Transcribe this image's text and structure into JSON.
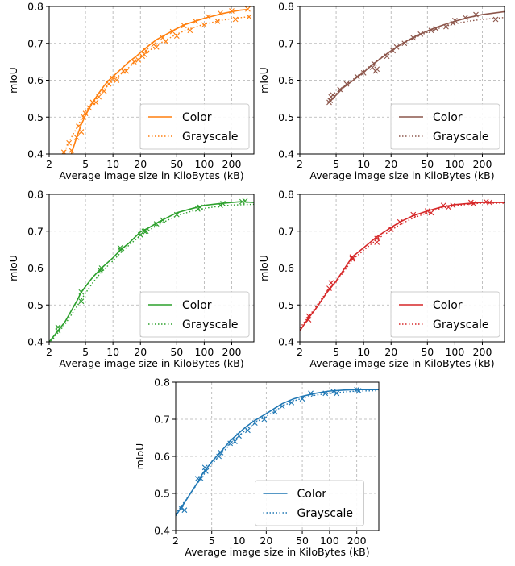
{
  "chart_data": [
    {
      "type": "line",
      "color": "#ff7f0e",
      "xlabel": "Average image size in KiloBytes (kB)",
      "ylabel": "mIoU",
      "xscale": "log",
      "xlim": [
        2,
        350
      ],
      "ylim": [
        0.4,
        0.8
      ],
      "xticks": [
        2,
        5,
        10,
        20,
        50,
        100,
        200
      ],
      "yticks": [
        "0.4",
        "0.5",
        "0.6",
        "0.7",
        "0.8"
      ],
      "grid": true,
      "legend_position": "bottom-right",
      "series": [
        {
          "name": "Color",
          "style": "solid",
          "x": [
            3.5,
            4,
            4.5,
            5,
            6,
            7,
            8,
            9,
            10,
            12,
            15,
            18,
            20,
            25,
            30,
            40,
            50,
            60,
            80,
            100,
            130,
            160,
            200,
            250,
            300
          ],
          "y": [
            0.4,
            0.445,
            0.48,
            0.505,
            0.54,
            0.565,
            0.585,
            0.6,
            0.61,
            0.628,
            0.65,
            0.665,
            0.675,
            0.695,
            0.71,
            0.727,
            0.74,
            0.75,
            0.76,
            0.768,
            0.775,
            0.781,
            0.786,
            0.79,
            0.792
          ]
        },
        {
          "name": "Grayscale",
          "style": "dotted",
          "x": [
            2.8,
            3,
            3.5,
            4,
            4.5,
            5,
            6,
            7,
            8,
            10,
            12,
            15,
            20,
            25,
            30,
            40,
            50,
            70,
            100,
            150,
            200,
            300
          ],
          "y": [
            0.4,
            0.41,
            0.445,
            0.47,
            0.495,
            0.515,
            0.54,
            0.56,
            0.575,
            0.598,
            0.615,
            0.635,
            0.662,
            0.68,
            0.695,
            0.712,
            0.725,
            0.74,
            0.752,
            0.762,
            0.767,
            0.772
          ]
        }
      ],
      "markers": [
        {
          "x": 3.5,
          "y": 0.41
        },
        {
          "x": 4,
          "y": 0.445
        },
        {
          "x": 4.5,
          "y": 0.46
        },
        {
          "x": 5,
          "y": 0.51
        },
        {
          "x": 6,
          "y": 0.54
        },
        {
          "x": 7,
          "y": 0.555
        },
        {
          "x": 9,
          "y": 0.59
        },
        {
          "x": 10,
          "y": 0.605
        },
        {
          "x": 13,
          "y": 0.625
        },
        {
          "x": 17,
          "y": 0.65
        },
        {
          "x": 21,
          "y": 0.665
        },
        {
          "x": 23,
          "y": 0.68
        },
        {
          "x": 28,
          "y": 0.697
        },
        {
          "x": 35,
          "y": 0.715
        },
        {
          "x": 45,
          "y": 0.732
        },
        {
          "x": 60,
          "y": 0.748
        },
        {
          "x": 80,
          "y": 0.76
        },
        {
          "x": 110,
          "y": 0.773
        },
        {
          "x": 150,
          "y": 0.782
        },
        {
          "x": 200,
          "y": 0.788
        },
        {
          "x": 300,
          "y": 0.793
        },
        {
          "x": 2.9,
          "y": 0.405
        },
        {
          "x": 3.3,
          "y": 0.43
        },
        {
          "x": 4.2,
          "y": 0.475
        },
        {
          "x": 4.8,
          "y": 0.5
        },
        {
          "x": 5.5,
          "y": 0.525
        },
        {
          "x": 6.5,
          "y": 0.54
        },
        {
          "x": 8,
          "y": 0.57
        },
        {
          "x": 11,
          "y": 0.6
        },
        {
          "x": 14,
          "y": 0.625
        },
        {
          "x": 19,
          "y": 0.655
        },
        {
          "x": 22,
          "y": 0.67
        },
        {
          "x": 30,
          "y": 0.69
        },
        {
          "x": 38,
          "y": 0.705
        },
        {
          "x": 50,
          "y": 0.72
        },
        {
          "x": 70,
          "y": 0.735
        },
        {
          "x": 100,
          "y": 0.75
        },
        {
          "x": 140,
          "y": 0.76
        },
        {
          "x": 220,
          "y": 0.765
        },
        {
          "x": 310,
          "y": 0.772
        }
      ]
    },
    {
      "type": "line",
      "color": "#8c564b",
      "xlabel": "Average image size in KiloBytes (kB)",
      "ylabel": "mIoU",
      "xscale": "log",
      "xlim": [
        2,
        350
      ],
      "ylim": [
        0.4,
        0.8
      ],
      "xticks": [
        2,
        5,
        10,
        20,
        50,
        100,
        200
      ],
      "yticks": [
        "0.4",
        "0.5",
        "0.6",
        "0.7",
        "0.8"
      ],
      "grid": true,
      "legend_position": "bottom-right",
      "series": [
        {
          "name": "Color",
          "style": "solid",
          "x": [
            4.2,
            5,
            6,
            8,
            10,
            13,
            17,
            22,
            30,
            40,
            55,
            75,
            100,
            140,
            200,
            350
          ],
          "y": [
            0.54,
            0.56,
            0.58,
            0.603,
            0.622,
            0.645,
            0.667,
            0.687,
            0.707,
            0.723,
            0.738,
            0.75,
            0.76,
            0.77,
            0.778,
            0.786
          ]
        },
        {
          "name": "Grayscale",
          "style": "dotted",
          "x": [
            4.2,
            5,
            6,
            8,
            10,
            13,
            17,
            22,
            30,
            40,
            55,
            75,
            100,
            140,
            200,
            350
          ],
          "y": [
            0.545,
            0.563,
            0.582,
            0.606,
            0.625,
            0.647,
            0.668,
            0.687,
            0.705,
            0.72,
            0.734,
            0.745,
            0.753,
            0.76,
            0.765,
            0.77
          ]
        }
      ],
      "markers": [
        {
          "x": 4.2,
          "y": 0.54
        },
        {
          "x": 4.3,
          "y": 0.545
        },
        {
          "x": 4.4,
          "y": 0.555
        },
        {
          "x": 4.6,
          "y": 0.56
        },
        {
          "x": 5.5,
          "y": 0.575
        },
        {
          "x": 6.5,
          "y": 0.59
        },
        {
          "x": 8.5,
          "y": 0.61
        },
        {
          "x": 10,
          "y": 0.62
        },
        {
          "x": 12.5,
          "y": 0.635
        },
        {
          "x": 13,
          "y": 0.645
        },
        {
          "x": 13.5,
          "y": 0.625
        },
        {
          "x": 14,
          "y": 0.63
        },
        {
          "x": 18,
          "y": 0.665
        },
        {
          "x": 21,
          "y": 0.68
        },
        {
          "x": 23,
          "y": 0.69
        },
        {
          "x": 28,
          "y": 0.7
        },
        {
          "x": 35,
          "y": 0.715
        },
        {
          "x": 42,
          "y": 0.725
        },
        {
          "x": 55,
          "y": 0.735
        },
        {
          "x": 62,
          "y": 0.74
        },
        {
          "x": 80,
          "y": 0.745
        },
        {
          "x": 95,
          "y": 0.755
        },
        {
          "x": 100,
          "y": 0.762
        },
        {
          "x": 130,
          "y": 0.77
        },
        {
          "x": 170,
          "y": 0.778
        },
        {
          "x": 280,
          "y": 0.765
        }
      ]
    },
    {
      "type": "line",
      "color": "#2ca02c",
      "xlabel": "Average image size in KiloBytes (kB)",
      "ylabel": "mIoU",
      "xscale": "log",
      "xlim": [
        2,
        350
      ],
      "ylim": [
        0.4,
        0.8
      ],
      "xticks": [
        2,
        5,
        10,
        20,
        50,
        100,
        200
      ],
      "yticks": [
        "0.4",
        "0.5",
        "0.6",
        "0.7",
        "0.8"
      ],
      "grid": true,
      "legend_position": "bottom-right",
      "series": [
        {
          "name": "Color",
          "style": "solid",
          "x": [
            2,
            2.5,
            3,
            4,
            4.5,
            5,
            6,
            7.5,
            10,
            12,
            15,
            20,
            25,
            30,
            40,
            50,
            70,
            100,
            150,
            200,
            250,
            350
          ],
          "y": [
            0.4,
            0.43,
            0.455,
            0.51,
            0.535,
            0.55,
            0.575,
            0.6,
            0.628,
            0.648,
            0.668,
            0.698,
            0.71,
            0.722,
            0.738,
            0.75,
            0.76,
            0.77,
            0.775,
            0.778,
            0.78,
            0.778
          ]
        },
        {
          "name": "Grayscale",
          "style": "dotted",
          "x": [
            2,
            2.5,
            3,
            4,
            4.5,
            5,
            6,
            7.5,
            10,
            12,
            15,
            20,
            25,
            30,
            40,
            50,
            70,
            100,
            150,
            200,
            350
          ],
          "y": [
            0.395,
            0.425,
            0.448,
            0.495,
            0.515,
            0.532,
            0.56,
            0.59,
            0.62,
            0.64,
            0.662,
            0.688,
            0.703,
            0.715,
            0.73,
            0.742,
            0.753,
            0.762,
            0.768,
            0.771,
            0.773
          ]
        }
      ],
      "markers": [
        {
          "x": 2.5,
          "y": 0.44
        },
        {
          "x": 2.5,
          "y": 0.43
        },
        {
          "x": 4.5,
          "y": 0.535
        },
        {
          "x": 4.5,
          "y": 0.51
        },
        {
          "x": 7.5,
          "y": 0.6
        },
        {
          "x": 7.3,
          "y": 0.593
        },
        {
          "x": 12,
          "y": 0.655
        },
        {
          "x": 12,
          "y": 0.65
        },
        {
          "x": 20,
          "y": 0.69
        },
        {
          "x": 22,
          "y": 0.7
        },
        {
          "x": 23,
          "y": 0.7
        },
        {
          "x": 30,
          "y": 0.72
        },
        {
          "x": 35,
          "y": 0.73
        },
        {
          "x": 50,
          "y": 0.745
        },
        {
          "x": 85,
          "y": 0.76
        },
        {
          "x": 90,
          "y": 0.765
        },
        {
          "x": 150,
          "y": 0.77
        },
        {
          "x": 160,
          "y": 0.775
        },
        {
          "x": 260,
          "y": 0.78
        },
        {
          "x": 280,
          "y": 0.782
        }
      ]
    },
    {
      "type": "line",
      "color": "#d62728",
      "xlabel": "Average image size in KiloBytes (kB)",
      "ylabel": "mIoU",
      "xscale": "log",
      "xlim": [
        2,
        350
      ],
      "ylim": [
        0.4,
        0.8
      ],
      "xticks": [
        2,
        5,
        10,
        20,
        50,
        100,
        200
      ],
      "yticks": [
        "0.4",
        "0.5",
        "0.6",
        "0.7",
        "0.8"
      ],
      "grid": true,
      "legend_position": "bottom-right",
      "series": [
        {
          "name": "Color",
          "style": "solid",
          "x": [
            2,
            2.5,
            3,
            4,
            5,
            7.5,
            10,
            14,
            20,
            25,
            35,
            50,
            70,
            100,
            150,
            200,
            350
          ],
          "y": [
            0.43,
            0.465,
            0.49,
            0.535,
            0.565,
            0.63,
            0.655,
            0.685,
            0.71,
            0.725,
            0.742,
            0.755,
            0.765,
            0.772,
            0.776,
            0.778,
            0.778
          ]
        },
        {
          "name": "Grayscale",
          "style": "dotted",
          "x": [
            2,
            2.5,
            3,
            4,
            5,
            7.5,
            10,
            14,
            20,
            25,
            35,
            50,
            70,
            100,
            150,
            200,
            350
          ],
          "y": [
            0.438,
            0.468,
            0.495,
            0.538,
            0.562,
            0.622,
            0.648,
            0.678,
            0.702,
            0.718,
            0.736,
            0.75,
            0.762,
            0.769,
            0.774,
            0.776,
            0.776
          ]
        }
      ],
      "markers": [
        {
          "x": 2.5,
          "y": 0.46
        },
        {
          "x": 2.5,
          "y": 0.47
        },
        {
          "x": 4.2,
          "y": 0.545
        },
        {
          "x": 4.4,
          "y": 0.56
        },
        {
          "x": 7.5,
          "y": 0.63
        },
        {
          "x": 7.5,
          "y": 0.625
        },
        {
          "x": 14,
          "y": 0.68
        },
        {
          "x": 14,
          "y": 0.67
        },
        {
          "x": 20,
          "y": 0.705
        },
        {
          "x": 25,
          "y": 0.725
        },
        {
          "x": 35,
          "y": 0.745
        },
        {
          "x": 50,
          "y": 0.755
        },
        {
          "x": 55,
          "y": 0.75
        },
        {
          "x": 75,
          "y": 0.77
        },
        {
          "x": 85,
          "y": 0.765
        },
        {
          "x": 95,
          "y": 0.77
        },
        {
          "x": 150,
          "y": 0.778
        },
        {
          "x": 160,
          "y": 0.775
        },
        {
          "x": 220,
          "y": 0.78
        },
        {
          "x": 240,
          "y": 0.778
        }
      ]
    },
    {
      "type": "line",
      "color": "#1f77b4",
      "xlabel": "Average image size in KiloBytes (kB)",
      "ylabel": "mIoU",
      "xscale": "log",
      "xlim": [
        2,
        350
      ],
      "ylim": [
        0.4,
        0.8
      ],
      "xticks": [
        2,
        5,
        10,
        20,
        50,
        100,
        200
      ],
      "yticks": [
        "0.4",
        "0.5",
        "0.6",
        "0.7",
        "0.8"
      ],
      "grid": true,
      "legend_position": "bottom-center",
      "series": [
        {
          "name": "Color",
          "style": "solid",
          "x": [
            2,
            2.5,
            3,
            3.5,
            4,
            5,
            6,
            7,
            8,
            10,
            12,
            15,
            20,
            25,
            30,
            40,
            50,
            70,
            100,
            150,
            200,
            350
          ],
          "y": [
            0.44,
            0.475,
            0.505,
            0.53,
            0.555,
            0.585,
            0.607,
            0.625,
            0.642,
            0.663,
            0.68,
            0.697,
            0.715,
            0.73,
            0.742,
            0.755,
            0.762,
            0.77,
            0.776,
            0.779,
            0.78,
            0.78
          ]
        },
        {
          "name": "Grayscale",
          "style": "dotted",
          "x": [
            2,
            2.5,
            3,
            3.5,
            4,
            5,
            6,
            7,
            8,
            10,
            12,
            15,
            20,
            25,
            30,
            40,
            50,
            70,
            100,
            150,
            200,
            350
          ],
          "y": [
            0.445,
            0.478,
            0.505,
            0.527,
            0.548,
            0.578,
            0.6,
            0.617,
            0.633,
            0.655,
            0.672,
            0.69,
            0.708,
            0.722,
            0.735,
            0.749,
            0.757,
            0.765,
            0.77,
            0.774,
            0.776,
            0.777
          ]
        }
      ],
      "markers": [
        {
          "x": 2.3,
          "y": 0.46
        },
        {
          "x": 2.5,
          "y": 0.455
        },
        {
          "x": 3.5,
          "y": 0.54
        },
        {
          "x": 3.8,
          "y": 0.54
        },
        {
          "x": 4.2,
          "y": 0.57
        },
        {
          "x": 4.3,
          "y": 0.56
        },
        {
          "x": 6,
          "y": 0.6
        },
        {
          "x": 6.3,
          "y": 0.61
        },
        {
          "x": 8,
          "y": 0.635
        },
        {
          "x": 9,
          "y": 0.64
        },
        {
          "x": 10,
          "y": 0.655
        },
        {
          "x": 12.5,
          "y": 0.67
        },
        {
          "x": 15,
          "y": 0.69
        },
        {
          "x": 19,
          "y": 0.7
        },
        {
          "x": 25,
          "y": 0.72
        },
        {
          "x": 30,
          "y": 0.735
        },
        {
          "x": 38,
          "y": 0.745
        },
        {
          "x": 50,
          "y": 0.755
        },
        {
          "x": 62,
          "y": 0.77
        },
        {
          "x": 90,
          "y": 0.77
        },
        {
          "x": 110,
          "y": 0.775
        },
        {
          "x": 120,
          "y": 0.77
        },
        {
          "x": 200,
          "y": 0.78
        },
        {
          "x": 210,
          "y": 0.777
        }
      ]
    }
  ]
}
